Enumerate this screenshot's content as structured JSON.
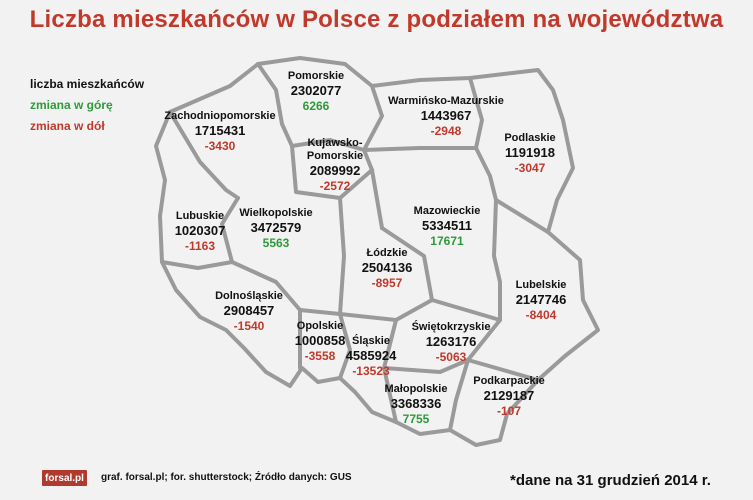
{
  "title": "Liczba mieszkańców w Polsce z podziałem na województwa",
  "legend": {
    "population": "liczba mieszkańców",
    "up": "zmiana w górę",
    "down": "zmiana w dół"
  },
  "colors": {
    "up": "#2e9a3a",
    "down": "#c0392b",
    "title": "#c0392b",
    "border": "#999999"
  },
  "regions": [
    {
      "id": "pomorskie",
      "name": [
        "Pomorskie"
      ],
      "population": "2302077",
      "change": "6266",
      "direction": "up"
    },
    {
      "id": "zachodniopomorskie",
      "name": [
        "Zachodniopomorskie"
      ],
      "population": "1715431",
      "change": "-3430",
      "direction": "down"
    },
    {
      "id": "warminsko-mazurskie",
      "name": [
        "Warmińsko-Mazurskie"
      ],
      "population": "1443967",
      "change": "-2948",
      "direction": "down"
    },
    {
      "id": "podlaskie",
      "name": [
        "Podlaskie"
      ],
      "population": "1191918",
      "change": "-3047",
      "direction": "down"
    },
    {
      "id": "kujawsko-pomorskie",
      "name": [
        "Kujawsko-",
        "Pomorskie"
      ],
      "population": "2089992",
      "change": "-2572",
      "direction": "down"
    },
    {
      "id": "mazowieckie",
      "name": [
        "Mazowieckie"
      ],
      "population": "5334511",
      "change": "17671",
      "direction": "up"
    },
    {
      "id": "lubuskie",
      "name": [
        "Lubuskie"
      ],
      "population": "1020307",
      "change": "-1163",
      "direction": "down"
    },
    {
      "id": "wielkopolskie",
      "name": [
        "Wielkopolskie"
      ],
      "population": "3472579",
      "change": "5563",
      "direction": "up"
    },
    {
      "id": "lodzkie",
      "name": [
        "Łódzkie"
      ],
      "population": "2504136",
      "change": "-8957",
      "direction": "down"
    },
    {
      "id": "lubelskie",
      "name": [
        "Lubelskie"
      ],
      "population": "2147746",
      "change": "-8404",
      "direction": "down"
    },
    {
      "id": "dolnoslaskie",
      "name": [
        "Dolnośląskie"
      ],
      "population": "2908457",
      "change": "-1540",
      "direction": "down"
    },
    {
      "id": "opolskie",
      "name": [
        "Opolskie"
      ],
      "population": "1000858",
      "change": "-3558",
      "direction": "down"
    },
    {
      "id": "slaskie",
      "name": [
        "Śląskie"
      ],
      "population": "4585924",
      "change": "-13523",
      "direction": "down"
    },
    {
      "id": "swietokrzyskie",
      "name": [
        "Świętokrzyskie"
      ],
      "population": "1263176",
      "change": "-5063",
      "direction": "down"
    },
    {
      "id": "malopolskie",
      "name": [
        "Małopolskie"
      ],
      "population": "3368336",
      "change": "7755",
      "direction": "up"
    },
    {
      "id": "podkarpackie",
      "name": [
        "Podkarpackie"
      ],
      "population": "2129187",
      "change": "-107",
      "direction": "down"
    }
  ],
  "footer": {
    "logo": "forsal.pl",
    "credit": "graf. forsal.pl; for. shutterstock; Źródło danych:  GUS",
    "note": "*dane na 31 grudzień 2014 r."
  }
}
